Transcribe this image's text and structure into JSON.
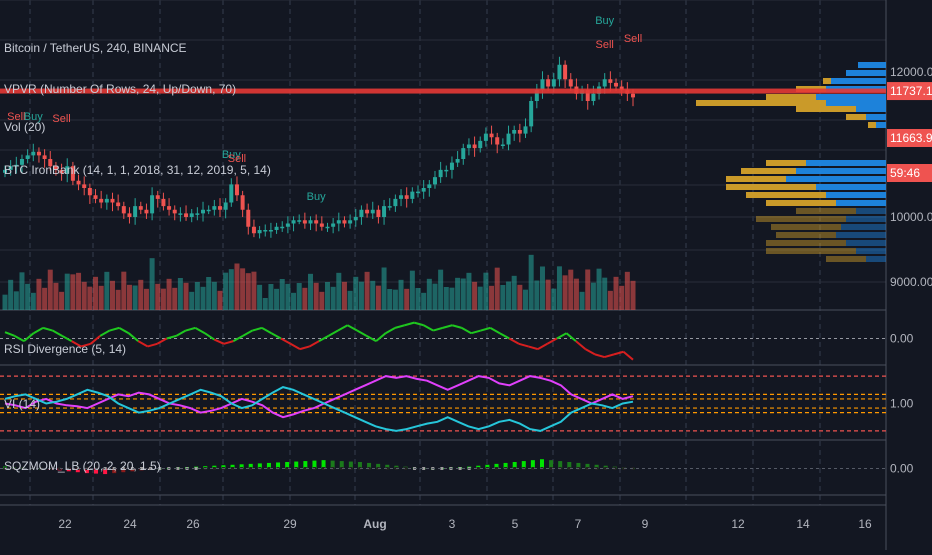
{
  "chart_data": [
    {
      "type": "candlestick",
      "pane": "price",
      "title": "Bitcoin / TetherUS, 240, BINANCE",
      "indicators": [
        "VPVR (Number Of Rows, 24, Up/Down, 70)",
        "Vol (20)",
        "BTC IronBank (14, 1, 1, 2018, 31, 12, 2019, 5, 14)"
      ],
      "y_ticks": [
        {
          "value": 12000,
          "label": "12000.00"
        },
        {
          "value": 10000,
          "label": "10000.00"
        },
        {
          "value": 9000,
          "label": "9000.00"
        }
      ],
      "price_tags": [
        {
          "value": 11737.13,
          "label": "11737.13",
          "color": "#ef5350"
        },
        {
          "value": 11663.99,
          "label": "11663.99",
          "color": "#ef5350"
        },
        {
          "label": "59:46",
          "color": "#ef5350"
        }
      ],
      "signals": [
        {
          "label": "Buy",
          "color": "#26a69a",
          "index": 106
        },
        {
          "label": "Sell",
          "color": "#ef5350",
          "index": 106
        },
        {
          "label": "Sell",
          "color": "#ef5350",
          "index": 111
        },
        {
          "label": "Buy",
          "color": "#26a69a",
          "index": 40
        },
        {
          "label": "Sell",
          "color": "#ef5350",
          "index": 41
        },
        {
          "label": "Buy",
          "color": "#26a69a",
          "index": 55
        },
        {
          "label": "Sell",
          "color": "#ef5350",
          "index": 2
        },
        {
          "label": "Buy",
          "color": "#26a69a",
          "index": 5
        },
        {
          "label": "Sell",
          "color": "#ef5350",
          "index": 10
        }
      ],
      "price_series": [
        10650,
        10700,
        10720,
        10800,
        10850,
        10900,
        10850,
        10800,
        10700,
        10650,
        10600,
        10700,
        10500,
        10450,
        10400,
        10300,
        10250,
        10200,
        10250,
        10200,
        10150,
        10050,
        10000,
        10150,
        10100,
        10050,
        10300,
        10250,
        10150,
        10100,
        10050,
        10050,
        10000,
        10050,
        10050,
        10100,
        10100,
        10150,
        10100,
        10200,
        10450,
        10300,
        10100,
        9850,
        9750,
        9800,
        9800,
        9800,
        9850,
        9850,
        9900,
        9950,
        9950,
        9900,
        9950,
        9900,
        9850,
        9850,
        9900,
        9950,
        9900,
        9950,
        10000,
        10100,
        10050,
        10100,
        10000,
        10150,
        10150,
        10250,
        10300,
        10250,
        10350,
        10350,
        10400,
        10450,
        10550,
        10650,
        10650,
        10750,
        10800,
        10950,
        11000,
        10950,
        11050,
        11150,
        11100,
        11000,
        11000,
        11150,
        11200,
        11150,
        11250,
        11600,
        11750,
        11900,
        11800,
        11900,
        12100,
        11900,
        11800,
        11700,
        11750,
        11600,
        11700,
        11800,
        11900,
        11850,
        11800,
        11750,
        11700,
        11650
      ],
      "volume_profile_note": "volume bars shown as relative levels"
    },
    {
      "type": "line",
      "pane": "rsi",
      "title": "RSI Divergence (5, 14)",
      "y_ticks": [
        {
          "value": 0,
          "label": "0.00"
        }
      ],
      "ylim": [
        -0.5,
        0.5
      ],
      "series": [
        {
          "color": "#26a69a",
          "values": [
            0.12,
            0.05,
            -0.05,
            0.1,
            0.2,
            0.15,
            0.05,
            -0.05,
            -0.15,
            -0.1,
            0.05,
            0.15,
            0.2,
            0.1,
            -0.05,
            -0.15,
            -0.1,
            0.0,
            0.05,
            0.15,
            0.2,
            0.1,
            -0.02,
            -0.1,
            -0.05,
            0.05,
            0.15,
            0.2,
            0.1,
            0.0,
            -0.1,
            -0.2,
            -0.15,
            -0.05,
            0.05,
            0.15,
            0.25,
            0.15,
            0.05,
            -0.05,
            0.1,
            0.2,
            0.25,
            0.3,
            0.25,
            0.15,
            0.2,
            0.25,
            0.2,
            0.1,
            0.15,
            0.2,
            0.1,
            0.0,
            -0.1,
            -0.15,
            -0.2,
            -0.1,
            0.0,
            0.1,
            -0.05,
            -0.2,
            -0.3,
            -0.35,
            -0.3,
            -0.25,
            -0.4
          ]
        }
      ]
    },
    {
      "type": "line",
      "pane": "vortex",
      "title": "VI (14)",
      "y_ticks": [
        {
          "value": 1.0,
          "label": "1.00"
        }
      ],
      "ylim": [
        0.6,
        1.4
      ],
      "series": [
        {
          "name": "VI+",
          "color": "#e040fb",
          "values": [
            1.0,
            0.98,
            0.95,
            1.02,
            1.05,
            1.0,
            0.98,
            0.97,
            0.95,
            1.0,
            1.05,
            1.1,
            1.08,
            1.12,
            1.1,
            1.05,
            1.0,
            0.98,
            0.95,
            0.9,
            0.92,
            0.95,
            1.0,
            1.05,
            1.02,
            0.98,
            0.9,
            0.85,
            0.88,
            0.92,
            0.95,
            1.0,
            1.05,
            1.1,
            1.15,
            1.2,
            1.25,
            1.3,
            1.28,
            1.3,
            1.27,
            1.25,
            1.2,
            1.15,
            1.2,
            1.25,
            1.3,
            1.28,
            1.22,
            1.2,
            1.25,
            1.3,
            1.28,
            1.25,
            1.2,
            1.1,
            1.05,
            1.0,
            1.05,
            1.1,
            1.05,
            1.08
          ]
        },
        {
          "name": "VI-",
          "color": "#26c6da",
          "values": [
            1.05,
            1.08,
            1.1,
            1.05,
            1.0,
            1.02,
            1.05,
            1.1,
            1.15,
            1.12,
            1.08,
            1.0,
            0.95,
            0.9,
            0.92,
            0.95,
            1.0,
            1.05,
            1.1,
            1.15,
            1.12,
            1.08,
            1.0,
            0.95,
            0.98,
            1.05,
            1.12,
            1.18,
            1.15,
            1.1,
            1.05,
            1.0,
            0.95,
            0.9,
            0.85,
            0.8,
            0.75,
            0.72,
            0.7,
            0.72,
            0.75,
            0.78,
            0.8,
            0.85,
            0.8,
            0.75,
            0.72,
            0.75,
            0.8,
            0.82,
            0.78,
            0.72,
            0.7,
            0.75,
            0.8,
            0.9,
            0.95,
            1.0,
            0.98,
            0.95,
            1.0,
            1.02
          ]
        }
      ],
      "bands": [
        {
          "value": 1.3,
          "color": "#ef5350"
        },
        {
          "value": 1.1,
          "color": "#ff9800"
        },
        {
          "value": 1.05,
          "color": "#ff9800"
        },
        {
          "value": 0.95,
          "color": "#ff9800"
        },
        {
          "value": 0.9,
          "color": "#ff9800"
        },
        {
          "value": 0.7,
          "color": "#ef5350"
        }
      ]
    },
    {
      "type": "bar",
      "pane": "squeeze",
      "title": "SQZMOM_LB (20, 2, 20, 1.5)",
      "y_ticks": [
        {
          "value": 0,
          "label": "0.00"
        }
      ],
      "ylim": [
        -1,
        1
      ],
      "values": [
        0.2,
        0.15,
        0.1,
        0.05,
        0.0,
        -0.1,
        -0.2,
        -0.3,
        -0.4,
        -0.5,
        -0.55,
        -0.6,
        -0.5,
        -0.4,
        -0.3,
        -0.2,
        -0.1,
        0.0,
        0.05,
        0.1,
        0.15,
        0.2,
        0.25,
        0.3,
        0.35,
        0.4,
        0.45,
        0.5,
        0.55,
        0.6,
        0.65,
        0.7,
        0.75,
        0.8,
        0.85,
        0.9,
        0.85,
        0.8,
        0.75,
        0.7,
        0.6,
        0.5,
        0.4,
        0.3,
        0.2,
        0.1,
        0.05,
        0.0,
        0.05,
        0.1,
        0.15,
        0.2,
        0.3,
        0.4,
        0.5,
        0.6,
        0.7,
        0.8,
        0.9,
        1.0,
        0.9,
        0.8,
        0.7,
        0.6,
        0.5,
        0.4,
        0.3,
        0.2,
        0.1,
        0.05
      ]
    }
  ],
  "x_axis": {
    "labels": [
      "22",
      "24",
      "26",
      "29",
      "Aug",
      "3",
      "5",
      "7",
      "9",
      "12",
      "14",
      "16"
    ]
  }
}
